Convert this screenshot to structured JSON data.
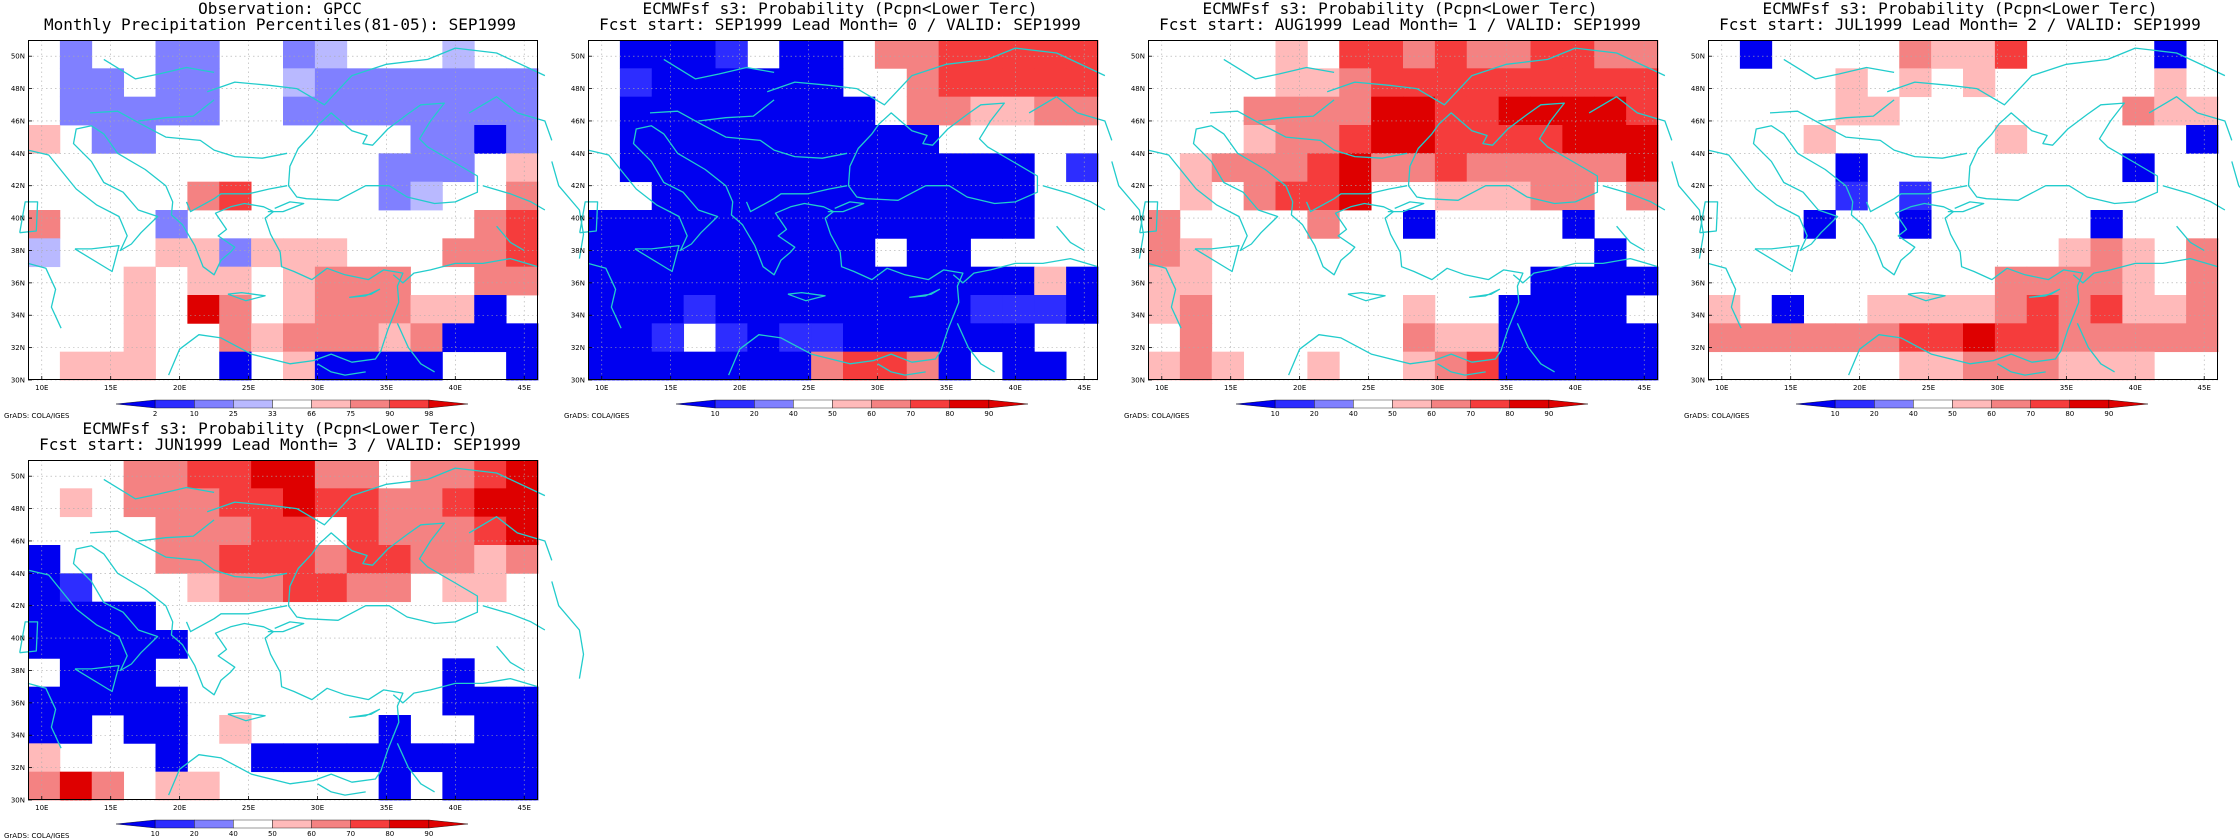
{
  "colors": {
    "b3": "#0000f0",
    "b2": "#2d2dff",
    "b1": "#8080ff",
    "b0": "#b9b9ff",
    "w": "#ffffff",
    "r0": "#ffbaba",
    "r1": "#f48282",
    "r2": "#f53c3c",
    "r3": "#de0000",
    "coast": "#22cccc",
    "grid": "#aaaaaa"
  },
  "axes": {
    "lon_labels": [
      "10E",
      "15E",
      "20E",
      "25E",
      "30E",
      "35E",
      "40E",
      "45E"
    ],
    "lat_labels": [
      "30N",
      "32N",
      "34N",
      "36N",
      "38N",
      "40N",
      "42N",
      "44N",
      "46N",
      "48N",
      "50N"
    ]
  },
  "credit": "GrADS: COLA/IGES",
  "colorbars": {
    "obs": {
      "ticks": [
        "2",
        "10",
        "25",
        "33",
        "66",
        "75",
        "90",
        "98"
      ],
      "colors": [
        "b3",
        "b2",
        "b1",
        "b0",
        "w",
        "r0",
        "r1",
        "r2",
        "r3"
      ]
    },
    "prob": {
      "ticks": [
        "10",
        "20",
        "40",
        "50",
        "60",
        "70",
        "80",
        "90"
      ],
      "colors": [
        "b3",
        "b2",
        "b1",
        "w",
        "r0",
        "r1",
        "r2",
        "r3",
        "r3"
      ]
    }
  },
  "panels": [
    {
      "title1": "Observation: GPCC",
      "title2": "Monthly Precipitation Percentiles(81-05): SEP1999",
      "colorbar": "obs",
      "grid": [
        "WB1WWB1B1WWB1B0WB1WWWB0W",
        "WB1B1WB1B1WWB1B1B1B1B1B1B1B1",
        "WB1B1B1B1B1WWB1B1B1B1B1B1B1B1",
        "R0WB1B1WWWB1WWWB3B1",
        "WWWWWWWWWB1B1B1WR0",
        "WWWWWR1R2WWWWB1B0WR1",
        "R1WWWB1WWWWWWWWWR1R2",
        "B0WWWR0R0B1R0R0R0WR1R1R2",
        "WWWR0WR0R0WR0R1R1R1WWR1R1",
        "WWWR0WR3R1WR0R1R1R1R0R0B3W",
        "WWWR0WWR1R0R1R1R1R0R1B3B3WWB3",
        "WR0R0R0WWB3WR0B3B3B3B3W"
      ]
    },
    {
      "title1": "ECMWFsf s3: Probability (Pcpn<Lower Terc)",
      "title2": "Fcst start: SEP1999   Lead Month= 0 / VALID: SEP1999",
      "colorbar": "prob"
    },
    {
      "title1": "ECMWFsf s3: Probability (Pcpn<Lower Terc)",
      "title2": "Fcst start: AUG1999   Lead Month= 1 / VALID: SEP1999",
      "colorbar": "prob"
    },
    {
      "title1": "ECMWFsf s3: Probability (Pcpn<Lower Terc)",
      "title2": "Fcst start: JUL1999   Lead Month= 2 / VALID: SEP1999",
      "colorbar": "prob"
    },
    {
      "title1": "ECMWFsf s3: Probability (Pcpn<Lower Terc)",
      "title2": "Fcst start: JUN1999   Lead Month= 3 / VALID: SEP1999",
      "colorbar": "prob"
    }
  ],
  "grids": [
    [
      "W",
      "B1",
      "W",
      "W",
      "B1",
      "B1",
      "W",
      "W",
      "B1",
      "B0",
      "W",
      "W",
      "W",
      "B0",
      "W",
      "W"
    ],
    [
      "B3",
      "B3",
      "B3",
      "B3",
      "B3",
      "W",
      "W",
      "W",
      "W",
      "W",
      "W",
      "W",
      "W",
      "W",
      "W",
      "W"
    ]
  ]
}
